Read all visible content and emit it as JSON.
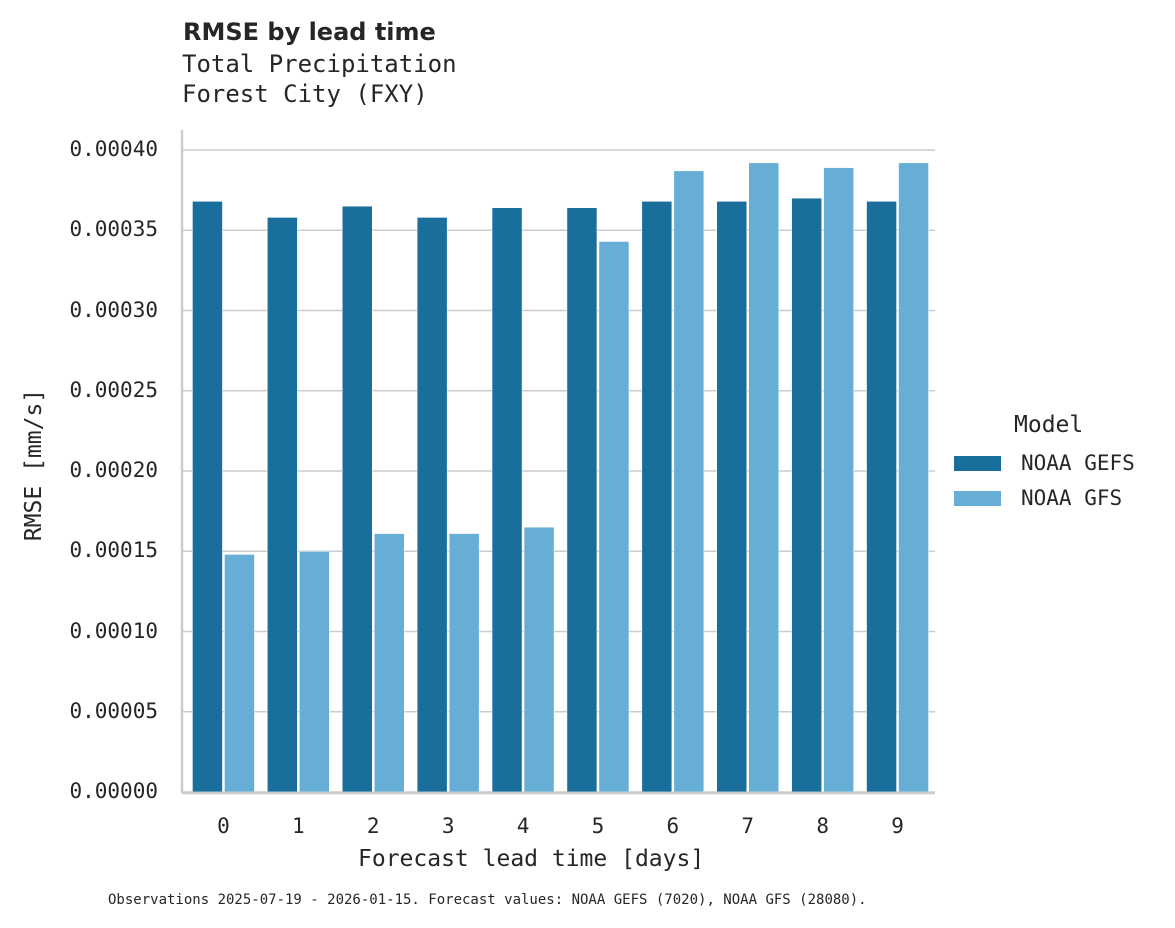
{
  "header": {
    "title": "RMSE by lead time",
    "subtitle1": "Total Precipitation",
    "subtitle2": "Forest City (FXY)"
  },
  "axes": {
    "xlabel": "Forecast lead time [days]",
    "ylabel": "RMSE [mm/s]",
    "yticks": [
      "0.00000",
      "0.00005",
      "0.00010",
      "0.00015",
      "0.00020",
      "0.00025",
      "0.00030",
      "0.00035",
      "0.00040"
    ],
    "xticks": [
      "0",
      "1",
      "2",
      "3",
      "4",
      "5",
      "6",
      "7",
      "8",
      "9"
    ]
  },
  "legend": {
    "title": "Model",
    "items": [
      {
        "label": "NOAA GEFS",
        "color": "#1a6e9c"
      },
      {
        "label": "NOAA GFS",
        "color": "#67aed7"
      }
    ]
  },
  "footnote": "Observations 2025-07-19 - 2026-01-15. Forecast values: NOAA GEFS (7020), NOAA GFS (28080).",
  "chart_data": {
    "type": "bar",
    "title": "RMSE by lead time",
    "subtitle": "Total Precipitation / Forest City (FXY)",
    "xlabel": "Forecast lead time [days]",
    "ylabel": "RMSE [mm/s]",
    "ylim": [
      0,
      0.00041
    ],
    "grid": "y",
    "legend_position": "right",
    "categories": [
      "0",
      "1",
      "2",
      "3",
      "4",
      "5",
      "6",
      "7",
      "8",
      "9"
    ],
    "series": [
      {
        "name": "NOAA GEFS",
        "color": "#1a6e9c",
        "values": [
          0.000368,
          0.000358,
          0.000365,
          0.000358,
          0.000364,
          0.000364,
          0.000368,
          0.000368,
          0.00037,
          0.000368
        ]
      },
      {
        "name": "NOAA GFS",
        "color": "#67aed7",
        "values": [
          0.000148,
          0.00015,
          0.000161,
          0.000161,
          0.000165,
          0.000343,
          0.000387,
          0.000392,
          0.000389,
          0.000392
        ]
      }
    ]
  }
}
